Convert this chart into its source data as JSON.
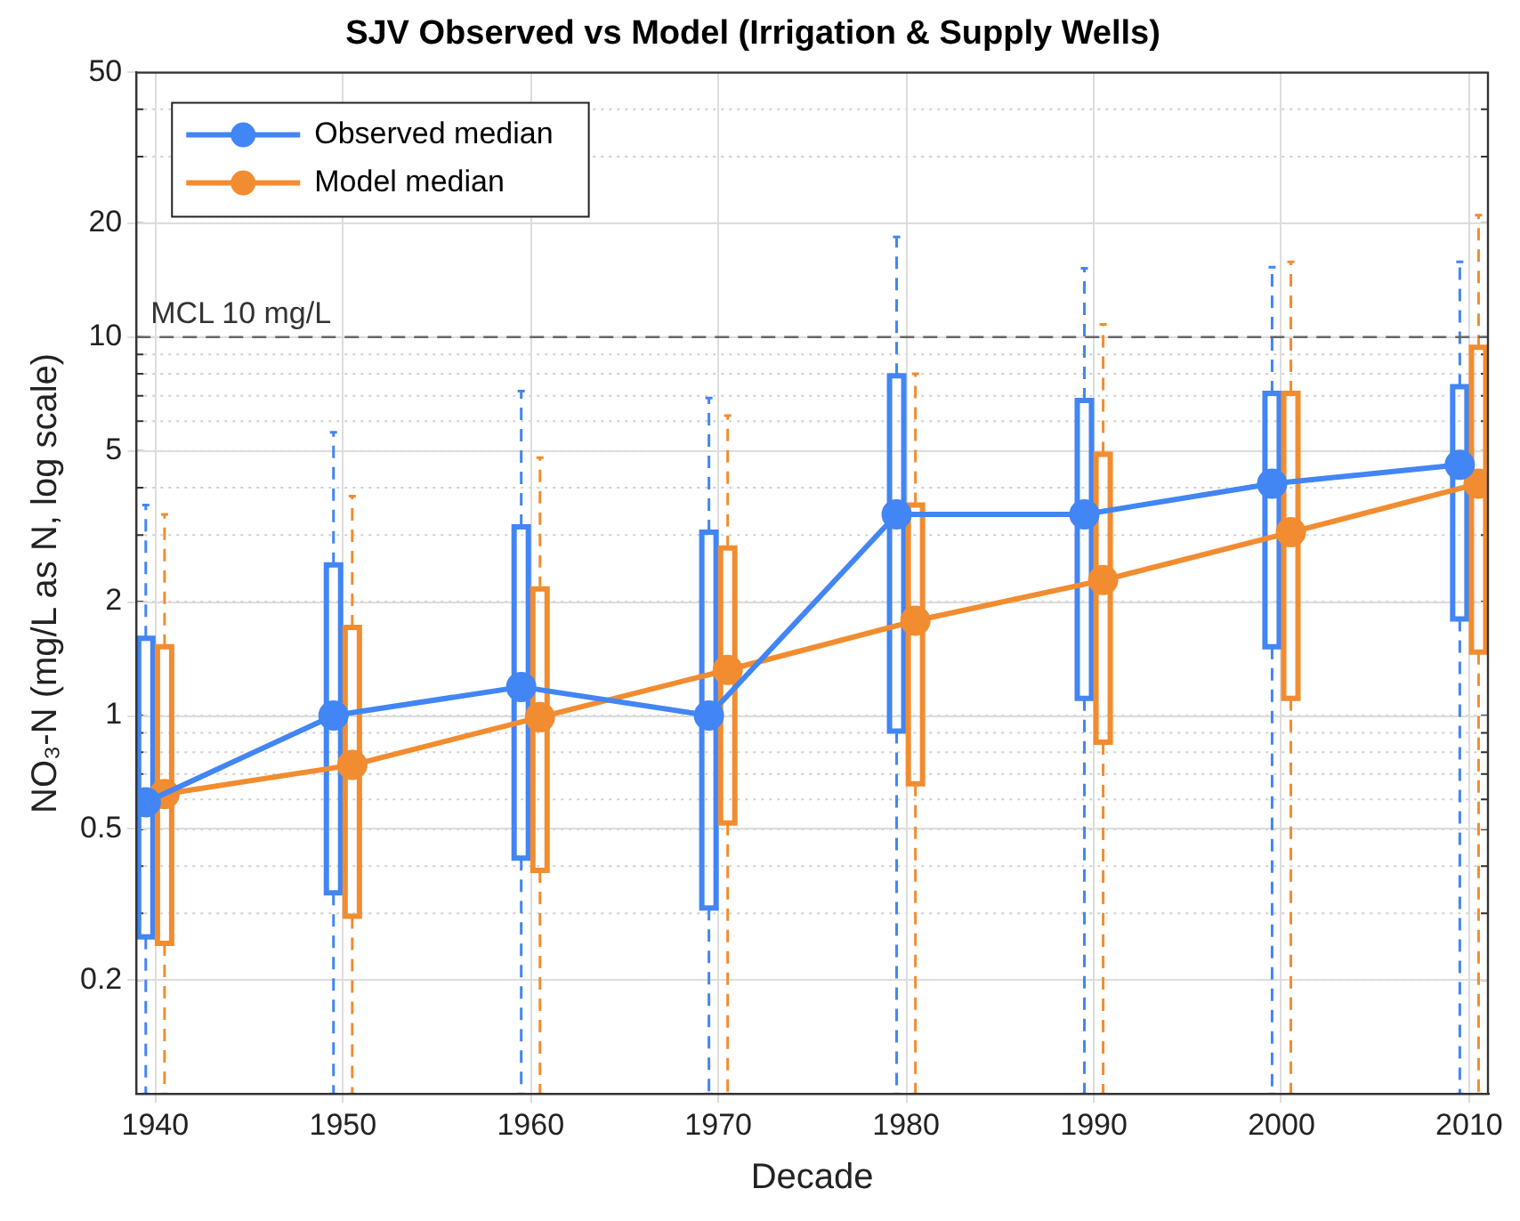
{
  "chart_data": {
    "type": "box",
    "title": "SJV Observed vs Model (Irrigation & Supply Wells)",
    "xlabel": "Decade",
    "ylabel": "NO₃-N (mg/L as N, log scale)",
    "log": "y",
    "grid": true,
    "legend": "top left",
    "marker": "circle",
    "xlim": [
      1939,
      2011
    ],
    "xticks": [
      1940,
      1950,
      1960,
      1970,
      1980,
      1990,
      2000,
      2010
    ],
    "ylim": [
      0.1,
      50
    ],
    "yticks": [
      0.2,
      0.5,
      1,
      2,
      5,
      10,
      20,
      50
    ],
    "ref_lines": [
      {
        "axis": "y",
        "value": 10,
        "label": "MCL 10 mg/L",
        "color": "#666666",
        "line_style": "dashed"
      }
    ],
    "series": [
      {
        "color": "#4285f4",
        "x": [
          1939.5,
          1949.5,
          1959.5,
          1969.5,
          1979.5,
          1989.5,
          1999.5,
          2009.5
        ],
        "boxes": [
          {
            "low": 0.1,
            "q1": 0.26,
            "median": 0.59,
            "q3": 1.6,
            "high": 3.6
          },
          {
            "low": 0.1,
            "q1": 0.34,
            "median": 1.0,
            "q3": 2.5,
            "high": 5.6
          },
          {
            "low": 0.1,
            "q1": 0.42,
            "median": 1.19,
            "q3": 3.15,
            "high": 7.2
          },
          {
            "low": 0.1,
            "q1": 0.31,
            "median": 1.0,
            "q3": 3.05,
            "high": 6.9
          },
          {
            "low": 0.1,
            "q1": 0.91,
            "median": 3.4,
            "q3": 7.9,
            "high": 18.4
          },
          {
            "low": 0.1,
            "q1": 1.11,
            "median": 3.4,
            "q3": 6.8,
            "high": 15.2
          },
          {
            "low": 0.1,
            "q1": 1.52,
            "median": 4.1,
            "q3": 7.1,
            "high": 15.3
          },
          {
            "low": 0.1,
            "q1": 1.8,
            "median": 4.6,
            "q3": 7.4,
            "high": 15.8
          }
        ]
      },
      {
        "color": "#f28c30",
        "x": [
          1940.5,
          1950.5,
          1960.5,
          1970.5,
          1980.5,
          1990.5,
          2000.5,
          2010.5
        ],
        "boxes": [
          {
            "low": 0.1,
            "q1": 0.25,
            "median": 0.62,
            "q3": 1.52,
            "high": 3.4
          },
          {
            "low": 0.1,
            "q1": 0.295,
            "median": 0.74,
            "q3": 1.71,
            "high": 3.8
          },
          {
            "low": 0.1,
            "q1": 0.39,
            "median": 0.99,
            "q3": 2.16,
            "high": 4.8
          },
          {
            "low": 0.1,
            "q1": 0.52,
            "median": 1.32,
            "q3": 2.77,
            "high": 6.2
          },
          {
            "low": 0.1,
            "q1": 0.66,
            "median": 1.78,
            "q3": 3.6,
            "high": 8.0
          },
          {
            "low": 0.1,
            "q1": 0.85,
            "median": 2.28,
            "q3": 4.9,
            "high": 10.8
          },
          {
            "low": 0.1,
            "q1": 1.11,
            "median": 3.05,
            "q3": 7.1,
            "high": 15.8
          },
          {
            "low": 0.1,
            "q1": 1.47,
            "median": 4.1,
            "q3": 9.4,
            "high": 21
          }
        ]
      },
      {
        "type": "line",
        "name": "Observed median",
        "color": "#4285f4",
        "x": [
          1939.5,
          1949.5,
          1959.5,
          1969.5,
          1979.5,
          1989.5,
          1999.5,
          2009.5
        ],
        "values": [
          0.59,
          1.0,
          1.19,
          1.0,
          3.4,
          3.4,
          4.1,
          4.6
        ]
      },
      {
        "type": "line",
        "name": "Model median",
        "color": "#f28c30",
        "x": [
          1940.5,
          1950.5,
          1960.5,
          1970.5,
          1980.5,
          1990.5,
          2000.5,
          2010.5
        ],
        "values": [
          0.62,
          0.74,
          0.99,
          1.32,
          1.78,
          2.28,
          3.05,
          4.1
        ]
      }
    ]
  }
}
